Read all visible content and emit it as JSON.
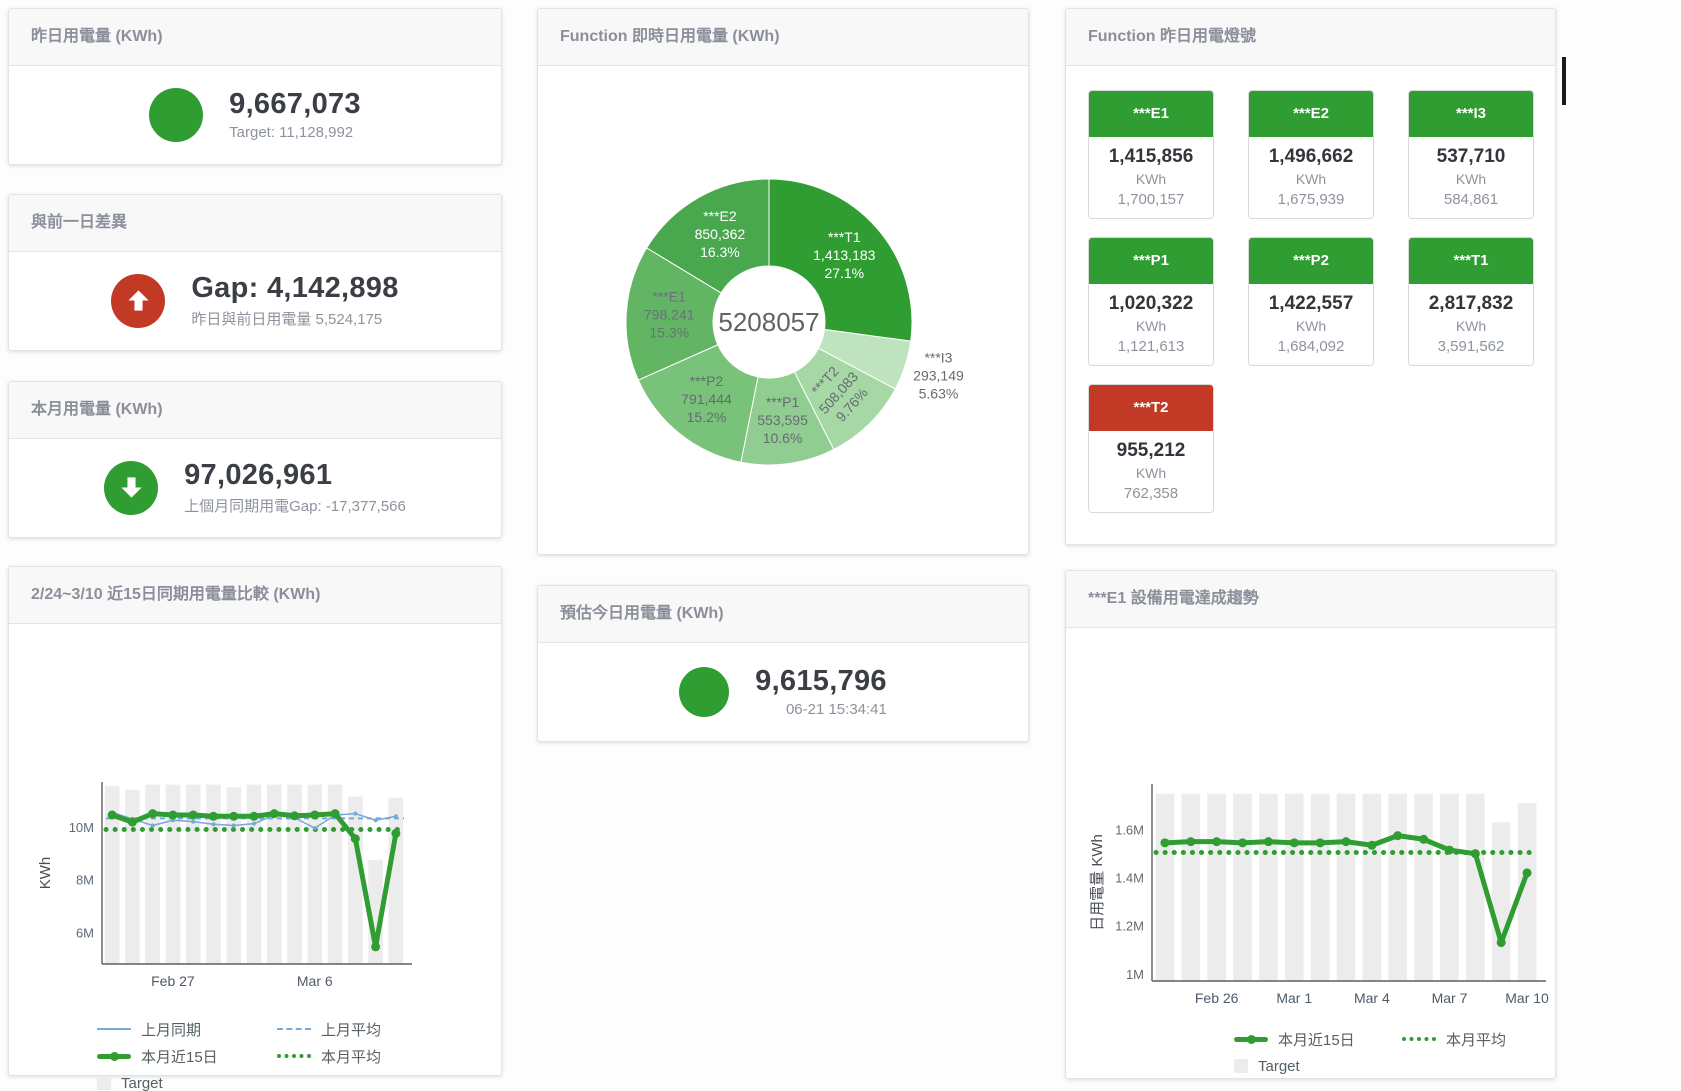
{
  "colors": {
    "green": "#2f9d32",
    "red": "#c23a26",
    "blue": "#74a9d8",
    "bar_gray": "#ececec",
    "value_dark": "#3b3f45",
    "muted_gray": "#8d939c"
  },
  "cards": {
    "yesterday": {
      "title": "昨日用電量 (KWh)",
      "value": "9,667,073",
      "subtitle": "Target: 11,128,992",
      "status_icon": "green-circle"
    },
    "gap": {
      "title": "與前一日差異",
      "value": "Gap: 4,142,898",
      "subtitle": "昨日與前日用電量 5,524,175",
      "status_icon": "red-circle-arrow-up"
    },
    "month": {
      "title": "本月用電量 (KWh)",
      "value": "97,026,961",
      "subtitle": "上個月同期用電Gap: -17,377,566",
      "status_icon": "green-circle-arrow-down"
    },
    "forecast": {
      "title": "預估今日用電量 (KWh)",
      "value": "9,615,796",
      "subtitle": "06-21 15:34:41",
      "status_icon": "green-circle"
    }
  },
  "lamp_panel": {
    "title": "Function 昨日用電燈號",
    "unit": "KWh",
    "tiles": [
      {
        "name": "***E1",
        "value": "1,415,856",
        "unit": "KWh",
        "target": "1,700,157",
        "status": "ok"
      },
      {
        "name": "***E2",
        "value": "1,496,662",
        "unit": "KWh",
        "target": "1,675,939",
        "status": "ok"
      },
      {
        "name": "***I3",
        "value": "537,710",
        "unit": "KWh",
        "target": "584,861",
        "status": "ok"
      },
      {
        "name": "***P1",
        "value": "1,020,322",
        "unit": "KWh",
        "target": "1,121,613",
        "status": "ok"
      },
      {
        "name": "***P2",
        "value": "1,422,557",
        "unit": "KWh",
        "target": "1,684,092",
        "status": "ok"
      },
      {
        "name": "***T1",
        "value": "2,817,832",
        "unit": "KWh",
        "target": "3,591,562",
        "status": "ok"
      },
      {
        "name": "***T2",
        "value": "955,212",
        "unit": "KWh",
        "target": "762,358",
        "status": "alert"
      }
    ]
  },
  "chart_data": [
    {
      "id": "realtime_donut",
      "type": "pie",
      "title": "Function 即時日用電量 (KWh)",
      "center_total": "5208057",
      "slices": [
        {
          "name": "***T1",
          "value": 1413183,
          "value_label": "1,413,183",
          "pct": "27.1%",
          "color": "#2f9d32",
          "label_color": "#ffffff"
        },
        {
          "name": "***I3",
          "value": 293149,
          "value_label": "293,149",
          "pct": "5.63%",
          "color": "#bfe3bf",
          "label_color": "#666b72",
          "outside": true
        },
        {
          "name": "***T2",
          "value": 508083,
          "value_label": "508,083",
          "pct": "9.76%",
          "color": "#a6d8a6",
          "label_color": "#666b72",
          "rotate": -48
        },
        {
          "name": "***P1",
          "value": 553595,
          "value_label": "553,595",
          "pct": "10.6%",
          "color": "#90cd90",
          "label_color": "#666b72"
        },
        {
          "name": "***P2",
          "value": 791444,
          "value_label": "791,444",
          "pct": "15.2%",
          "color": "#79c27a",
          "label_color": "#666b72"
        },
        {
          "name": "***E1",
          "value": 798241,
          "value_label": "798,241",
          "pct": "15.3%",
          "color": "#61b563",
          "label_color": "#68707a"
        },
        {
          "name": "***E2",
          "value": 850362,
          "value_label": "850,362",
          "pct": "16.3%",
          "color": "#49a84d",
          "label_color": "#ffffff"
        }
      ]
    },
    {
      "id": "compare15",
      "type": "line",
      "title": "2/24~3/10 近15日同期用電量比較 (KWh)",
      "ylabel": "KWh",
      "ylim": [
        4800000,
        11700000
      ],
      "yticks": [
        {
          "v": 6000000,
          "label": "6M"
        },
        {
          "v": 8000000,
          "label": "8M"
        },
        {
          "v": 10000000,
          "label": "10M"
        }
      ],
      "categories": [
        "Feb 24",
        "Feb 25",
        "Feb 26",
        "Feb 27",
        "Feb 28",
        "Mar 1",
        "Mar 2",
        "Mar 3",
        "Mar 4",
        "Mar 5",
        "Mar 6",
        "Mar 7",
        "Mar 8",
        "Mar 9",
        "Mar 10"
      ],
      "xticks": [
        {
          "i": 3,
          "label": "Feb 27"
        },
        {
          "i": 10,
          "label": "Mar 6"
        }
      ],
      "target": {
        "name": "Target",
        "color": "#ececec",
        "values": [
          11550000,
          11400000,
          11600000,
          11600000,
          11600000,
          11600000,
          11500000,
          11600000,
          11600000,
          11600000,
          11600000,
          11600000,
          11150000,
          8750000,
          11100000
        ]
      },
      "series": [
        {
          "name": "上月同期",
          "type": "line",
          "color": "#74a9d8",
          "width": 1.5,
          "marker": 2,
          "values": [
            10550000,
            10300000,
            10050000,
            10250000,
            10200000,
            10100000,
            10050000,
            10120000,
            10450000,
            10350000,
            9950000,
            10450000,
            10500000,
            10250000,
            10400000
          ]
        },
        {
          "name": "上月平均",
          "type": "avg",
          "color": "#74a9d8",
          "width": 2,
          "dash": "5 4",
          "value": 10320000
        },
        {
          "name": "本月近15日",
          "type": "line",
          "color": "#2f9d32",
          "width": 5,
          "marker": 4.5,
          "values": [
            10450000,
            10180000,
            10500000,
            10450000,
            10450000,
            10400000,
            10400000,
            10400000,
            10500000,
            10420000,
            10450000,
            10500000,
            9550000,
            5450000,
            9750000
          ]
        },
        {
          "name": "本月平均",
          "type": "avg",
          "color": "#2f9d32",
          "width": 5,
          "dash": "0.1 9",
          "round": true,
          "value": 9900000
        }
      ],
      "legend": [
        {
          "label": "上月同期",
          "swatch": "line",
          "color": "#74a9d8"
        },
        {
          "label": "上月平均",
          "swatch": "dash",
          "color": "#74a9d8"
        },
        {
          "label": "本月近15日",
          "swatch": "thick",
          "color": "#2f9d32"
        },
        {
          "label": "本月平均",
          "swatch": "dots",
          "color": "#2f9d32"
        },
        {
          "label": "Target",
          "swatch": "square",
          "color": "#ececec"
        }
      ]
    },
    {
      "id": "e1_trend",
      "type": "line",
      "title": "***E1 設備用電達成趨勢",
      "ylabel": "日用電量 KWh",
      "ylim": [
        970000,
        1790000
      ],
      "yticks": [
        {
          "v": 1000000,
          "label": "1M"
        },
        {
          "v": 1200000,
          "label": "1.2M"
        },
        {
          "v": 1400000,
          "label": "1.4M"
        },
        {
          "v": 1600000,
          "label": "1.6M"
        }
      ],
      "categories": [
        "Feb 24",
        "Feb 25",
        "Feb 26",
        "Feb 27",
        "Feb 28",
        "Mar 1",
        "Mar 2",
        "Mar 3",
        "Mar 4",
        "Mar 5",
        "Mar 6",
        "Mar 7",
        "Mar 8",
        "Mar 9",
        "Mar 10"
      ],
      "xticks": [
        {
          "i": 2,
          "label": "Feb 26"
        },
        {
          "i": 5,
          "label": "Mar 1"
        },
        {
          "i": 8,
          "label": "Mar 4"
        },
        {
          "i": 11,
          "label": "Mar 7"
        },
        {
          "i": 14,
          "label": "Mar 10"
        }
      ],
      "target": {
        "name": "Target",
        "color": "#ececec",
        "values": [
          1750000,
          1750000,
          1750000,
          1750000,
          1750000,
          1750000,
          1750000,
          1750000,
          1750000,
          1750000,
          1750000,
          1750000,
          1750000,
          1630000,
          1710000
        ]
      },
      "series": [
        {
          "name": "本月近15日",
          "type": "line",
          "color": "#2f9d32",
          "width": 5,
          "marker": 4.5,
          "values": [
            1545000,
            1550000,
            1550000,
            1545000,
            1550000,
            1545000,
            1545000,
            1550000,
            1535000,
            1575000,
            1560000,
            1515000,
            1500000,
            1130000,
            1420000
          ]
        },
        {
          "name": "本月平均",
          "type": "avg",
          "color": "#2f9d32",
          "width": 5,
          "dash": "0.1 9",
          "round": true,
          "value": 1505000
        }
      ],
      "legend": [
        {
          "label": "本月近15日",
          "swatch": "thick",
          "color": "#2f9d32"
        },
        {
          "label": "本月平均",
          "swatch": "dots",
          "color": "#2f9d32"
        },
        {
          "label": "Target",
          "swatch": "square",
          "color": "#ececec"
        }
      ]
    }
  ]
}
